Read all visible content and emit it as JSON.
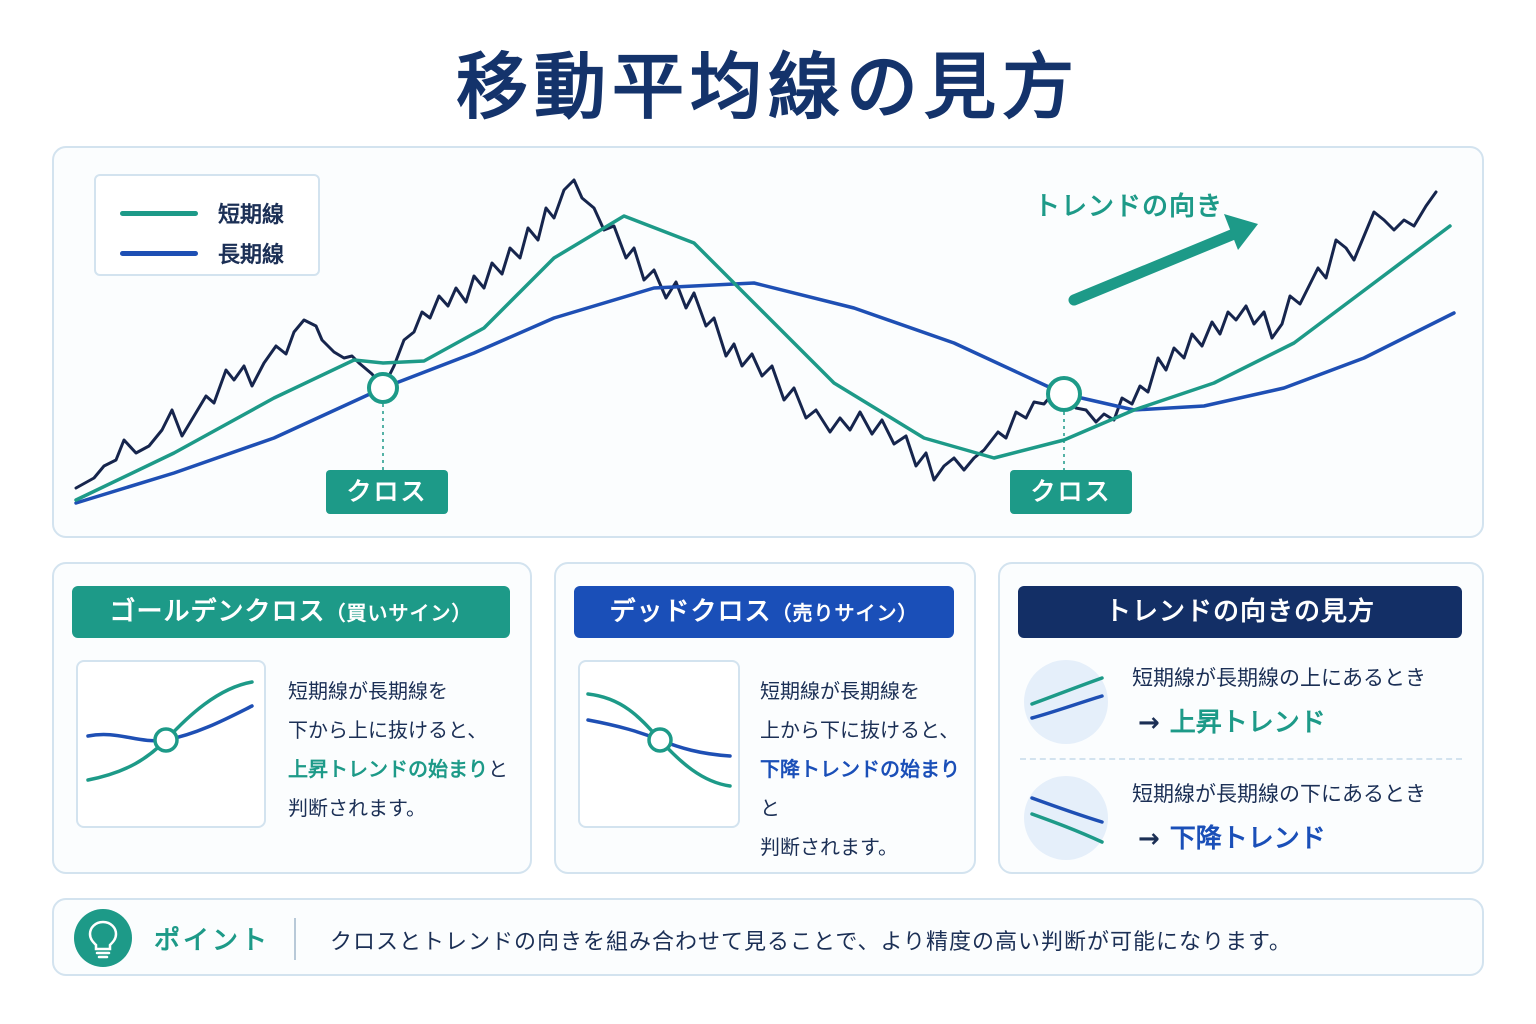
{
  "title": "移動平均線の見方",
  "colors": {
    "teal": "#1d9a88",
    "blue": "#1e4fb4",
    "navy": "#14336b",
    "price": "#16254d",
    "panel_border": "#d3e3ef"
  },
  "chart": {
    "legend": [
      {
        "label": "短期線",
        "color": "#1d9a88"
      },
      {
        "label": "長期線",
        "color": "#1e4fb4"
      }
    ],
    "cross_labels": [
      "クロス",
      "クロス"
    ],
    "trend_label": "トレンドの向き"
  },
  "chart_data": {
    "type": "line",
    "title": "",
    "series": [
      {
        "name": "短期線"
      },
      {
        "name": "長期線"
      }
    ],
    "crosses": 2,
    "trend_direction": "up"
  },
  "cards": {
    "golden": {
      "heading": "ゴールデンクロス",
      "heading_sub": "（買いサイン）",
      "lines": [
        "短期線が長期線を",
        "下から上に抜けると、"
      ],
      "highlight": "上昇トレンドの始まり",
      "tail": "と",
      "last": "判断されます。"
    },
    "dead": {
      "heading": "デッドクロス",
      "heading_sub": "（売りサイン）",
      "lines": [
        "短期線が長期線を",
        "上から下に抜けると、"
      ],
      "highlight": "下降トレンドの始まり",
      "tail": "と",
      "last": "判断されます。"
    },
    "trend": {
      "heading": "トレンドの向きの見方",
      "rows": [
        {
          "text": "短期線が長期線の上にあるとき",
          "arrow": "→",
          "result": "上昇トレンド"
        },
        {
          "text": "短期線が長期線の下にあるとき",
          "arrow": "→",
          "result": "下降トレンド"
        }
      ]
    }
  },
  "point": {
    "label": "ポイント",
    "text": "クロスとトレンドの向きを組み合わせて見ることで、より精度の高い判断が可能になります。"
  }
}
